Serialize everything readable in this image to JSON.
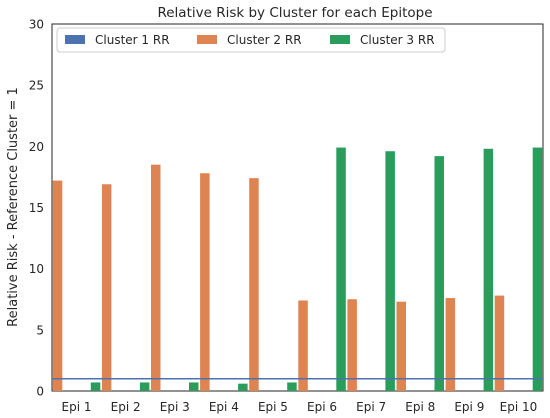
{
  "chart_data": {
    "type": "bar",
    "title": "Relative Risk by Cluster for each Epitope",
    "xlabel": "",
    "ylabel": "Relative Risk - Reference Cluster = 1",
    "ylim": [
      0,
      30
    ],
    "yticks": [
      0,
      5,
      10,
      15,
      20,
      25,
      30
    ],
    "categories": [
      "Epi 1",
      "Epi 2",
      "Epi 3",
      "Epi 4",
      "Epi 5",
      "Epi 6",
      "Epi 7",
      "Epi 8",
      "Epi 9",
      "Epi 10"
    ],
    "series": [
      {
        "name": "Cluster 1 RR",
        "color": "#4c72b0",
        "style": "reference-line",
        "values": [
          1,
          1,
          1,
          1,
          1,
          1,
          1,
          1,
          1,
          1
        ]
      },
      {
        "name": "Cluster 2 RR",
        "color": "#dd8452",
        "values": [
          17.2,
          16.9,
          18.5,
          17.8,
          17.4,
          7.4,
          7.5,
          7.3,
          7.6,
          7.8
        ]
      },
      {
        "name": "Cluster 3 RR",
        "color": "#2a9d5c",
        "values": [
          0.7,
          0.7,
          0.7,
          0.6,
          0.7,
          19.9,
          19.6,
          19.2,
          19.8,
          19.9
        ]
      }
    ],
    "grid": false,
    "legend": "top"
  }
}
